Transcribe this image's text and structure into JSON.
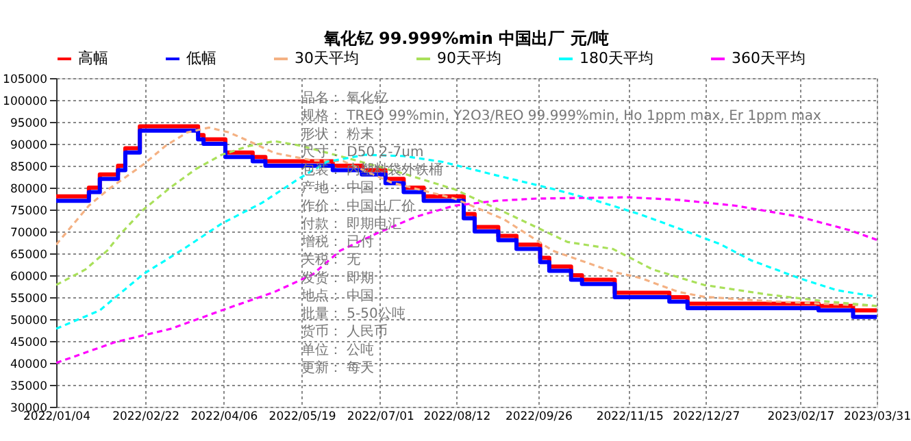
{
  "chart_data": {
    "type": "line",
    "title": "氧化钇 99.999%min 中国出厂 元/吨",
    "xlim": [
      "2022-01-04",
      "2023-03-31"
    ],
    "xticks": [
      {
        "value": "2022-01-04",
        "label": "2022/01/04"
      },
      {
        "value": "2022-02-22",
        "label": "2022/02/22"
      },
      {
        "value": "2022-04-06",
        "label": "2022/04/06"
      },
      {
        "value": "2022-05-19",
        "label": "2022/05/19"
      },
      {
        "value": "2022-07-01",
        "label": "2022/07/01"
      },
      {
        "value": "2022-08-12",
        "label": "2022/08/12"
      },
      {
        "value": "2022-09-26",
        "label": "2022/09/26"
      },
      {
        "value": "2022-11-15",
        "label": "2022/11/15"
      },
      {
        "value": "2022-12-27",
        "label": "2022/12/27"
      },
      {
        "value": "2023-02-17",
        "label": "2023/02/17"
      },
      {
        "value": "2023-03-31",
        "label": "2023/03/31"
      }
    ],
    "ylim": [
      30000,
      105000
    ],
    "yticks": [
      30000,
      35000,
      40000,
      45000,
      50000,
      55000,
      60000,
      65000,
      70000,
      75000,
      80000,
      85000,
      90000,
      95000,
      100000,
      105000
    ],
    "grid": true,
    "legend": "top",
    "series": [
      {
        "name": "高幅",
        "type": "step",
        "color": "#ff0000",
        "line_style": "solid",
        "x": [
          "2022-01-04",
          "2022-01-22",
          "2022-01-28",
          "2022-02-07",
          "2022-02-11",
          "2022-02-19",
          "2022-03-23",
          "2022-03-26",
          "2022-04-07",
          "2022-04-22",
          "2022-04-29",
          "2022-06-05",
          "2022-06-21",
          "2022-07-04",
          "2022-07-14",
          "2022-07-25",
          "2022-08-16",
          "2022-08-22",
          "2022-09-04",
          "2022-09-14",
          "2022-09-27",
          "2022-10-02",
          "2022-10-14",
          "2022-10-20",
          "2022-11-07",
          "2022-12-07",
          "2022-12-17",
          "2023-02-27",
          "2023-03-18",
          "2023-03-31"
        ],
        "values": [
          78000,
          80000,
          83000,
          85000,
          89000,
          94000,
          92000,
          91000,
          88000,
          87000,
          86000,
          85000,
          84000,
          82000,
          80000,
          78000,
          74000,
          71000,
          69000,
          67000,
          64000,
          62000,
          60000,
          59000,
          56000,
          55000,
          53500,
          53000,
          52000,
          52000
        ]
      },
      {
        "name": "低幅",
        "type": "step",
        "color": "#0000ff",
        "line_style": "solid",
        "x": [
          "2022-01-04",
          "2022-01-22",
          "2022-01-28",
          "2022-02-07",
          "2022-02-11",
          "2022-02-19",
          "2022-03-23",
          "2022-03-26",
          "2022-04-07",
          "2022-04-22",
          "2022-04-29",
          "2022-06-05",
          "2022-06-21",
          "2022-07-04",
          "2022-07-14",
          "2022-07-25",
          "2022-08-16",
          "2022-08-22",
          "2022-09-04",
          "2022-09-14",
          "2022-09-27",
          "2022-10-02",
          "2022-10-14",
          "2022-10-20",
          "2022-11-07",
          "2022-12-07",
          "2022-12-17",
          "2023-02-27",
          "2023-03-18",
          "2023-03-31"
        ],
        "values": [
          77000,
          79000,
          82000,
          84000,
          88000,
          93000,
          91000,
          90000,
          87000,
          86000,
          85000,
          84000,
          83000,
          81000,
          79000,
          77000,
          73000,
          70000,
          68000,
          66000,
          63000,
          61000,
          59000,
          58000,
          55000,
          54000,
          52500,
          52000,
          50500,
          50500
        ]
      },
      {
        "name": "30天平均",
        "color": "#f4b183",
        "line_style": "dashed",
        "x": [
          "2022-01-04",
          "2022-01-22",
          "2022-02-02",
          "2022-02-21",
          "2022-03-05",
          "2022-03-17",
          "2022-03-29",
          "2022-04-09",
          "2022-04-20",
          "2022-05-04",
          "2022-05-25",
          "2022-06-11",
          "2022-07-07",
          "2022-08-11",
          "2022-09-07",
          "2022-10-04",
          "2022-11-06",
          "2022-11-21",
          "2022-12-12",
          "2022-12-26",
          "2023-01-30",
          "2023-03-02",
          "2023-03-31"
        ],
        "values": [
          67000,
          75900,
          79700,
          85300,
          89500,
          92600,
          93700,
          92600,
          90600,
          87900,
          86200,
          86000,
          81200,
          77500,
          72800,
          65600,
          60800,
          59400,
          56200,
          55100,
          54100,
          53500,
          53000
        ]
      },
      {
        "name": "90天平均",
        "color": "#a9e05a",
        "line_style": "dashed",
        "x": [
          "2022-01-04",
          "2022-01-20",
          "2022-02-01",
          "2022-02-09",
          "2022-02-21",
          "2022-03-08",
          "2022-03-22",
          "2022-04-05",
          "2022-04-20",
          "2022-05-04",
          "2022-05-18",
          "2022-06-16",
          "2022-07-14",
          "2022-08-11",
          "2022-09-10",
          "2022-10-12",
          "2022-11-06",
          "2022-11-28",
          "2022-12-26",
          "2023-01-30",
          "2023-03-02",
          "2023-03-31"
        ],
        "values": [
          57800,
          61300,
          65600,
          69700,
          75000,
          80100,
          84300,
          87500,
          89500,
          90600,
          89600,
          86400,
          83200,
          79600,
          73900,
          67600,
          66000,
          61300,
          57800,
          55600,
          54100,
          53000
        ]
      },
      {
        "name": "180天平均",
        "color": "#00ffff",
        "line_style": "dashed",
        "x": [
          "2022-01-04",
          "2022-01-28",
          "2022-02-21",
          "2022-03-15",
          "2022-04-05",
          "2022-04-27",
          "2022-05-18",
          "2022-06-02",
          "2022-06-23",
          "2022-07-14",
          "2022-08-04",
          "2022-09-03",
          "2022-10-04",
          "2022-10-28",
          "2022-11-21",
          "2022-12-12",
          "2023-01-04",
          "2023-01-21",
          "2023-02-16",
          "2023-03-09",
          "2023-03-31"
        ],
        "values": [
          47800,
          52000,
          60300,
          66000,
          71800,
          76500,
          82200,
          85900,
          87500,
          87200,
          85900,
          82800,
          79700,
          77000,
          73900,
          70700,
          67100,
          63400,
          59400,
          56600,
          55100
        ]
      },
      {
        "name": "360天平均",
        "color": "#ff00ff",
        "line_style": "dashed",
        "x": [
          "2022-01-04",
          "2022-02-05",
          "2022-03-08",
          "2022-04-05",
          "2022-05-04",
          "2022-05-25",
          "2022-06-09",
          "2022-06-30",
          "2022-07-21",
          "2022-08-11",
          "2022-09-03",
          "2022-09-25",
          "2022-11-14",
          "2022-12-12",
          "2023-01-12",
          "2023-02-16",
          "2023-03-16",
          "2023-03-31"
        ],
        "values": [
          40000,
          44700,
          47800,
          52000,
          56200,
          60200,
          65600,
          69700,
          73400,
          75900,
          77000,
          77500,
          77800,
          77200,
          75900,
          73400,
          70300,
          68100
        ]
      }
    ],
    "annotations": [
      "品名：  氧化钇",
      "规格：  TREO 99%min, Y2O3/REO 99.999%min, Ho 1ppm max, Er 1ppm max",
      "形状：  粉末",
      "尺寸：  D50 2-7um",
      "包装：  内塑料袋外铁桶",
      "产地：  中国",
      "作价：  中国出厂价",
      "付款：  即期电汇",
      "增税：  已付",
      "关税：  无",
      "发货：  即期",
      "地点：  中国",
      "批量：  5-50公吨",
      "货币：  人民币",
      "单位：  公吨",
      "更新：  每天"
    ]
  }
}
